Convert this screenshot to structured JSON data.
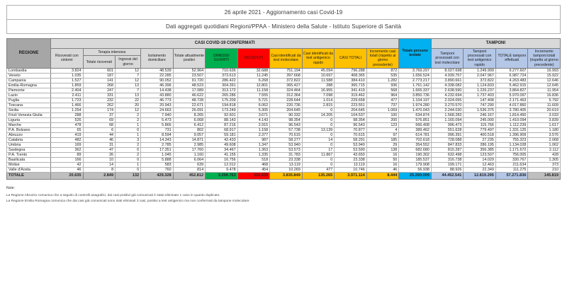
{
  "title": {
    "line1": "26 aprile 2021 - Aggiornamento casi Covid-19",
    "line2": "Dati aggregati quotidiani Regioni/PPAA - Ministero della Salute - Istituto Superiore di Sanità"
  },
  "colors": {
    "header_gray": "#d9d9d9",
    "regione_header_gray": "#a6a6a6",
    "dimessi_green": "#00b050",
    "deceduti_red": "#ff0000",
    "casi_yellow": "#ffc000",
    "testate_cyan": "#00b0f0",
    "tamponi_periwinkle": "#b4c7e7",
    "totale_row_gray": "#bfbfbf"
  },
  "table": {
    "headers": {
      "regione": "REGIONE",
      "casi_confermati": "CASI COVID-19 CONFERMATI",
      "ricoverati": "Ricoverati con sintomi",
      "terapia_intensiva": "Terapia intensiva",
      "totale_ricoverati": "Totale ricoverati",
      "ingressi": "Ingressi del giorno",
      "isolamento": "Isolamento domiciliare",
      "attualmente_positivi": "Totale attualmente positivi",
      "dimessi": "DIMESSI/ GUARITI",
      "deceduti": "DECEDUTI",
      "casi_molecolare": "Casi identificati da test molecolare",
      "casi_antigenico": "Casi identificati da test antigenico rapido",
      "casi_totali": "CASI TOTALI",
      "incremento_casi": "Incremento casi totali (rispetto al giorno precedente)",
      "persone_testate": "Totale persone testate",
      "tamponi": "TAMPONI",
      "tamponi_molecolare": "Tamponi processati con test molecolare",
      "tamponi_antigenico": "Tamponi processati con test antigenico rapido",
      "totale_tamponi": "TOTALE tamponi effettuati",
      "incremento_tamponi": "Incremento tamponi totali (rispetto al giorno precedente)"
    },
    "rows": [
      {
        "region": "Lombardia",
        "values": [
          "3.824",
          "601",
          "12",
          "48.539",
          "52.964",
          "710.636",
          "32.688",
          "751.194",
          "45.094",
          "796.288",
          "872",
          "3.769.297",
          "8.027.698",
          "1.249.909",
          "9.277.607",
          "16.993"
        ]
      },
      {
        "region": "Veneto",
        "values": [
          "1.035",
          "187",
          "7",
          "22.285",
          "23.507",
          "373.613",
          "11.245",
          "397.668",
          "10.697",
          "408.365",
          "535",
          "1.656.524",
          "4.939.757",
          "2.047.967",
          "6.987.724",
          "15.922"
        ]
      },
      {
        "region": "Campania",
        "values": [
          "1.527",
          "141",
          "12",
          "90.052",
          "91.720",
          "286.422",
          "6.268",
          "372.822",
          "11.588",
          "384.410",
          "1.282",
          "2.773.217",
          "3.890.661",
          "372.822",
          "4.263.483",
          "12.646"
        ]
      },
      {
        "region": "Emilia-Romagna",
        "values": [
          "1.859",
          "268",
          "13",
          "46.396",
          "48.523",
          "304.391",
          "12.801",
          "365.427",
          "288",
          "365.715",
          "936",
          "1.761.142",
          "4.338.082",
          "1.124.833",
          "5.462.915",
          "12.645"
        ]
      },
      {
        "region": "Piemonte",
        "values": [
          "2.404",
          "247",
          "7",
          "14.438",
          "17.089",
          "313.172",
          "11.158",
          "324.464",
          "16.955",
          "341.419",
          "568",
          "1.665.337",
          "2.638.590",
          "1.226.237",
          "3.864.827",
          "11.954"
        ]
      },
      {
        "region": "Lazio",
        "values": [
          "2.411",
          "331",
          "13",
          "43.880",
          "46.622",
          "265.286",
          "7.555",
          "312.364",
          "7.098",
          "319.462",
          "964",
          "3.850.736",
          "4.232.694",
          "1.737.403",
          "5.970.097",
          "16.836"
        ]
      },
      {
        "region": "Puglia",
        "values": [
          "1.723",
          "232",
          "22",
          "46.773",
          "48.728",
          "175.209",
          "5.721",
          "228.644",
          "1.014",
          "229.658",
          "477",
          "1.104.197",
          "2.024.055",
          "147.408",
          "2.171.463",
          "5.792"
        ]
      },
      {
        "region": "Toscana",
        "values": [
          "1.466",
          "262",
          "20",
          "20.943",
          "22.671",
          "194.818",
          "6.062",
          "220.736",
          "2.815",
          "223.551",
          "737",
          "1.974.280",
          "3.270.570",
          "747.290",
          "4.017.860",
          "11.609"
        ]
      },
      {
        "region": "Sicilia",
        "values": [
          "1.254",
          "174",
          "12",
          "24.663",
          "26.091",
          "173.249",
          "5.305",
          "204.645",
          "0",
          "204.645",
          "1.069",
          "1.470.043",
          "2.244.030",
          "1.536.375",
          "3.780.405",
          "20.619"
        ]
      },
      {
        "region": "Friuli Venezia Giulia",
        "values": [
          "288",
          "37",
          "2",
          "7.940",
          "8.265",
          "92.601",
          "3.671",
          "90.332",
          "14.205",
          "104.537",
          "100",
          "634.874",
          "1.568.283",
          "246.167",
          "1.814.450",
          "3.033"
        ]
      },
      {
        "region": "Liguria",
        "values": [
          "526",
          "69",
          "2",
          "5.473",
          "6.068",
          "88.143",
          "4.143",
          "98.354",
          "0",
          "98.354",
          "200",
          "576.851",
          "1.165.094",
          "245.000",
          "1.410.094",
          "3.839"
        ]
      },
      {
        "region": "Marche",
        "values": [
          "478",
          "68",
          "1",
          "5.866",
          "6.412",
          "87.216",
          "2.915",
          "96.543",
          "0",
          "96.543",
          "123",
          "666.408",
          "996.473",
          "115.766",
          "1.112.239",
          "1.617"
        ]
      },
      {
        "region": "P.A. Bolzano",
        "values": [
          "65",
          "6",
          "0",
          "731",
          "802",
          "68.917",
          "1.158",
          "57.738",
          "13.139",
          "70.877",
          "4",
          "389.462",
          "551.628",
          "779.497",
          "1.331.125",
          "1.180"
        ]
      },
      {
        "region": "Abruzzo",
        "values": [
          "419",
          "44",
          "1",
          "8.594",
          "9.057",
          "59.181",
          "2.377",
          "70.615",
          "0",
          "70.615",
          "97",
          "614.781",
          "996.391",
          "400.518",
          "1.396.909",
          "3.576"
        ]
      },
      {
        "region": "Calabria",
        "values": [
          "482",
          "46",
          "3",
          "14.343",
          "14.871",
          "42.433",
          "987",
          "58.277",
          "14",
          "58.291",
          "185",
          "702.618",
          "728.088",
          "27.235",
          "755.323",
          "2.068"
        ]
      },
      {
        "region": "Umbria",
        "values": [
          "169",
          "31",
          "2",
          "2.785",
          "2.985",
          "49.608",
          "1.347",
          "53.940",
          "0",
          "53.940",
          "29",
          "354.552",
          "847.833",
          "286.195",
          "1.134.028",
          "1.062"
        ]
      },
      {
        "region": "Sardegna",
        "values": [
          "362",
          "47",
          "0",
          "17.351",
          "17.760",
          "34.467",
          "1.363",
          "53.573",
          "17",
          "53.590",
          "138",
          "682.680",
          "815.287",
          "356.385",
          "1.171.672",
          "2.112"
        ]
      },
      {
        "region": "P.A. Trento",
        "values": [
          "89",
          "26",
          "2",
          "1.045",
          "1.160",
          "41.155",
          "1.335",
          "31.783",
          "11.867",
          "43.650",
          "16",
          "190.302",
          "632.498",
          "123.507",
          "756.005",
          "428"
        ]
      },
      {
        "region": "Basilicata",
        "values": [
          "166",
          "10",
          "0",
          "5.888",
          "6.064",
          "16.756",
          "518",
          "23.338",
          "0",
          "23.338",
          "50",
          "185.537",
          "316.738",
          "14.029",
          "330.767",
          "1.305"
        ]
      },
      {
        "region": "Molise",
        "values": [
          "42",
          "14",
          "1",
          "583",
          "639",
          "12.012",
          "468",
          "13.119",
          "0",
          "13.119",
          "16",
          "179.908",
          "199.171",
          "12.463",
          "211.634",
          "373"
        ]
      },
      {
        "region": "Valle d'Aosta",
        "values": [
          "46",
          "8",
          "0",
          "760",
          "814",
          "9.478",
          "454",
          "10.269",
          "477",
          "10.746",
          "46",
          "56.938",
          "88.926",
          "22.349",
          "111.275",
          "210"
        ]
      }
    ],
    "total_row": {
      "region": "TOTALE",
      "values": [
        "20.635",
        "2.849",
        "132",
        "429.328",
        "452.812",
        "3.398.763",
        "119.539",
        "3.835.849",
        "135.265",
        "3.971.114",
        "8.444",
        "25.260.009",
        "44.452.541",
        "12.819.295",
        "57.271.836",
        "145.819"
      ]
    }
  },
  "notes": {
    "label": "Note:",
    "lines": [
      "La Regione Abruzzo comunica che a seguito di controlli anagrafici, dai casi positivi già comunicati è stato eliminato 1 caso in quanto duplicato.",
      "La Regione Emilia Romagna comunica che dai casi già comunicati sono stati eliminati 3 casi, positivi a test antigenico ma non confermati da tampone molecolare."
    ]
  }
}
